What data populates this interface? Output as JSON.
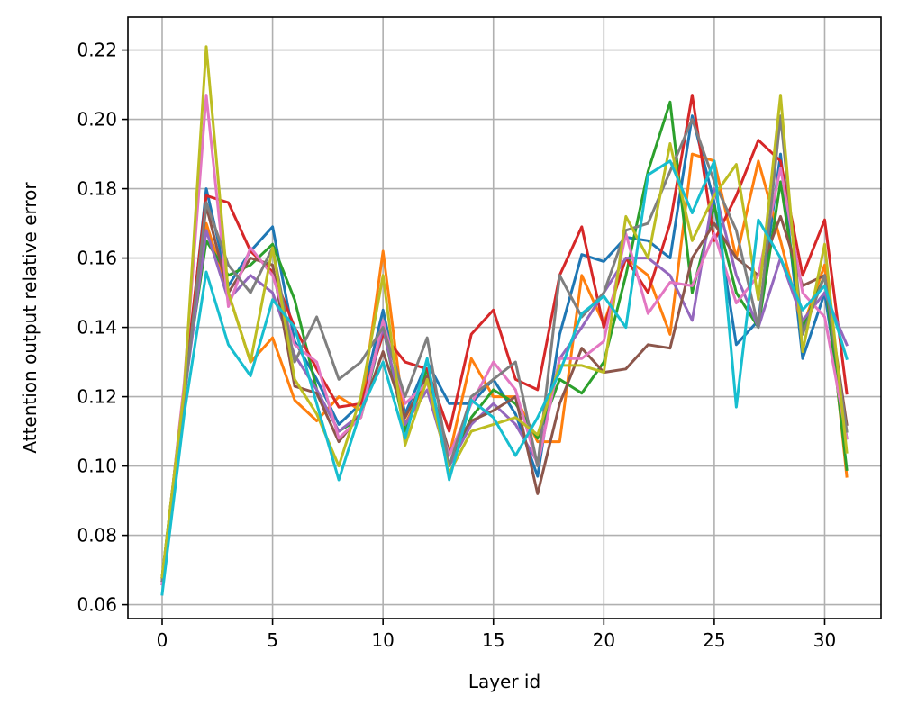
{
  "chart_data": {
    "type": "line",
    "xlabel": "Layer id",
    "ylabel": "Attention output relative error",
    "xlim": [
      -1.55,
      32.55
    ],
    "ylim": [
      0.056,
      0.2295
    ],
    "xticks": [
      0,
      5,
      10,
      15,
      20,
      25,
      30
    ],
    "xtick_labels": [
      "0",
      "5",
      "10",
      "15",
      "20",
      "25",
      "30"
    ],
    "yticks": [
      0.06,
      0.08,
      0.1,
      0.12,
      0.14,
      0.16,
      0.18,
      0.2,
      0.22
    ],
    "ytick_labels": [
      "0.06",
      "0.08",
      "0.10",
      "0.12",
      "0.14",
      "0.16",
      "0.18",
      "0.20",
      "0.22"
    ],
    "grid": true,
    "x": [
      0,
      1,
      2,
      3,
      4,
      5,
      6,
      7,
      8,
      9,
      10,
      11,
      12,
      13,
      14,
      15,
      16,
      17,
      18,
      19,
      20,
      21,
      22,
      23,
      24,
      25,
      26,
      27,
      28,
      29,
      30,
      31
    ],
    "series": [
      {
        "color": "#1f77b4",
        "values": [
          0.066,
          0.12,
          0.18,
          0.152,
          0.162,
          0.169,
          0.136,
          0.125,
          0.112,
          0.118,
          0.145,
          0.115,
          0.13,
          0.118,
          0.118,
          0.125,
          0.115,
          0.097,
          0.138,
          0.161,
          0.159,
          0.166,
          0.165,
          0.16,
          0.201,
          0.176,
          0.135,
          0.142,
          0.19,
          0.131,
          0.15,
          0.108
        ]
      },
      {
        "color": "#ff7f0e",
        "values": [
          0.067,
          0.121,
          0.17,
          0.15,
          0.13,
          0.137,
          0.119,
          0.113,
          0.12,
          0.116,
          0.162,
          0.112,
          0.125,
          0.103,
          0.131,
          0.12,
          0.12,
          0.107,
          0.107,
          0.155,
          0.141,
          0.16,
          0.155,
          0.138,
          0.19,
          0.188,
          0.16,
          0.188,
          0.165,
          0.14,
          0.158,
          0.097
        ]
      },
      {
        "color": "#2ca02c",
        "values": [
          0.068,
          0.122,
          0.165,
          0.155,
          0.158,
          0.164,
          0.148,
          0.122,
          0.11,
          0.114,
          0.14,
          0.11,
          0.128,
          0.1,
          0.114,
          0.122,
          0.118,
          0.108,
          0.125,
          0.121,
          0.13,
          0.155,
          0.185,
          0.205,
          0.15,
          0.175,
          0.15,
          0.14,
          0.182,
          0.14,
          0.155,
          0.099
        ]
      },
      {
        "color": "#d62728",
        "values": [
          0.067,
          0.123,
          0.178,
          0.176,
          0.162,
          0.156,
          0.14,
          0.128,
          0.117,
          0.118,
          0.138,
          0.13,
          0.128,
          0.11,
          0.138,
          0.145,
          0.125,
          0.122,
          0.155,
          0.169,
          0.14,
          0.16,
          0.15,
          0.17,
          0.207,
          0.165,
          0.178,
          0.194,
          0.188,
          0.155,
          0.171,
          0.121
        ]
      },
      {
        "color": "#9467bd",
        "values": [
          0.066,
          0.12,
          0.168,
          0.148,
          0.155,
          0.15,
          0.132,
          0.122,
          0.11,
          0.115,
          0.14,
          0.112,
          0.122,
          0.1,
          0.112,
          0.118,
          0.112,
          0.101,
          0.131,
          0.14,
          0.15,
          0.16,
          0.16,
          0.155,
          0.142,
          0.18,
          0.155,
          0.14,
          0.16,
          0.142,
          0.15,
          0.135
        ]
      },
      {
        "color": "#8c564b",
        "values": [
          0.068,
          0.121,
          0.175,
          0.15,
          0.16,
          0.158,
          0.123,
          0.121,
          0.107,
          0.115,
          0.133,
          0.114,
          0.126,
          0.104,
          0.113,
          0.116,
          0.12,
          0.092,
          0.118,
          0.134,
          0.127,
          0.128,
          0.135,
          0.134,
          0.16,
          0.17,
          0.16,
          0.155,
          0.172,
          0.152,
          0.155,
          0.112
        ]
      },
      {
        "color": "#e377c2",
        "values": [
          0.066,
          0.124,
          0.207,
          0.146,
          0.163,
          0.155,
          0.135,
          0.13,
          0.108,
          0.114,
          0.142,
          0.118,
          0.124,
          0.103,
          0.118,
          0.13,
          0.122,
          0.1,
          0.131,
          0.131,
          0.136,
          0.167,
          0.144,
          0.153,
          0.152,
          0.167,
          0.147,
          0.155,
          0.186,
          0.15,
          0.143,
          0.108
        ]
      },
      {
        "color": "#7f7f7f",
        "values": [
          0.067,
          0.119,
          0.176,
          0.158,
          0.15,
          0.163,
          0.13,
          0.143,
          0.125,
          0.13,
          0.14,
          0.12,
          0.137,
          0.1,
          0.12,
          0.125,
          0.13,
          0.1,
          0.155,
          0.143,
          0.15,
          0.168,
          0.17,
          0.185,
          0.2,
          0.182,
          0.168,
          0.14,
          0.201,
          0.138,
          0.155,
          0.11
        ]
      },
      {
        "color": "#bcbd22",
        "values": [
          0.068,
          0.122,
          0.221,
          0.15,
          0.13,
          0.163,
          0.125,
          0.115,
          0.1,
          0.12,
          0.155,
          0.106,
          0.125,
          0.098,
          0.11,
          0.112,
          0.114,
          0.109,
          0.129,
          0.129,
          0.127,
          0.172,
          0.16,
          0.193,
          0.165,
          0.178,
          0.187,
          0.148,
          0.207,
          0.133,
          0.164,
          0.104
        ]
      },
      {
        "color": "#17becf",
        "values": [
          0.063,
          0.115,
          0.156,
          0.135,
          0.126,
          0.148,
          0.14,
          0.118,
          0.096,
          0.116,
          0.13,
          0.108,
          0.131,
          0.096,
          0.119,
          0.114,
          0.103,
          0.114,
          0.127,
          0.144,
          0.149,
          0.14,
          0.184,
          0.188,
          0.173,
          0.188,
          0.117,
          0.171,
          0.16,
          0.145,
          0.152,
          0.131
        ]
      }
    ]
  }
}
